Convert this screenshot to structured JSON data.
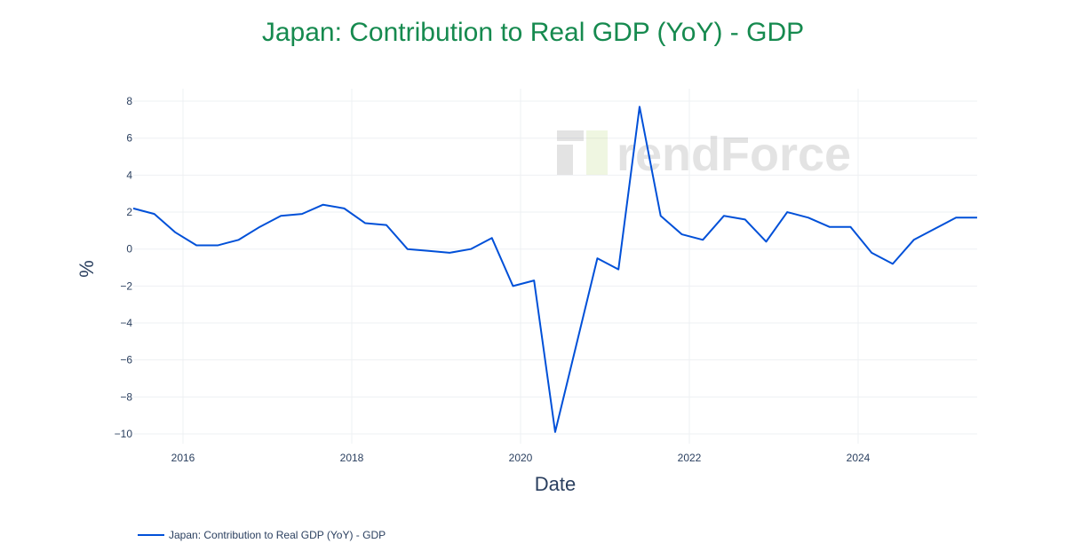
{
  "chart_data": {
    "type": "line",
    "title": "Japan: Contribution to Real GDP (YoY) - GDP",
    "xlabel": "Date",
    "ylabel": "%",
    "ylim": [
      -10.4,
      8.8
    ],
    "yticks": [
      8,
      6,
      4,
      2,
      0,
      -2,
      -4,
      -6,
      -8,
      -10
    ],
    "ytick_labels": [
      "8",
      "6",
      "4",
      "2",
      "0",
      "−2",
      "−4",
      "−6",
      "−8",
      "−10"
    ],
    "xticks": [
      "2016",
      "2018",
      "2020",
      "2022",
      "2024"
    ],
    "grid": true,
    "legend_position": "bottom-left",
    "watermark": "TrendForce",
    "series": [
      {
        "name": "Japan: Contribution to Real GDP (YoY) - GDP",
        "color": "#0050d8",
        "x": [
          "2015-Q2",
          "2015-Q3",
          "2015-Q4",
          "2016-Q1",
          "2016-Q2",
          "2016-Q3",
          "2016-Q4",
          "2017-Q1",
          "2017-Q2",
          "2017-Q3",
          "2017-Q4",
          "2018-Q1",
          "2018-Q2",
          "2018-Q3",
          "2018-Q4",
          "2019-Q1",
          "2019-Q2",
          "2019-Q3",
          "2019-Q4",
          "2020-Q1",
          "2020-Q2",
          "2020-Q3",
          "2020-Q4",
          "2021-Q1",
          "2021-Q2",
          "2021-Q3",
          "2021-Q4",
          "2022-Q1",
          "2022-Q2",
          "2022-Q3",
          "2022-Q4",
          "2023-Q1",
          "2023-Q2",
          "2023-Q3",
          "2023-Q4",
          "2024-Q1",
          "2024-Q2",
          "2024-Q3",
          "2024-Q4",
          "2025-Q1",
          "2025-Q2"
        ],
        "values": [
          2.2,
          1.9,
          0.9,
          0.2,
          0.2,
          0.5,
          1.2,
          1.8,
          1.9,
          2.4,
          2.2,
          1.4,
          1.3,
          0.0,
          -0.1,
          -0.2,
          0.0,
          0.6,
          -2.0,
          -1.7,
          -9.9,
          -5.2,
          -0.5,
          -1.1,
          7.7,
          1.8,
          0.8,
          0.5,
          1.8,
          1.6,
          0.4,
          2.0,
          1.7,
          1.2,
          1.2,
          -0.2,
          -0.8,
          0.5,
          1.1,
          1.7,
          1.7
        ]
      }
    ]
  }
}
